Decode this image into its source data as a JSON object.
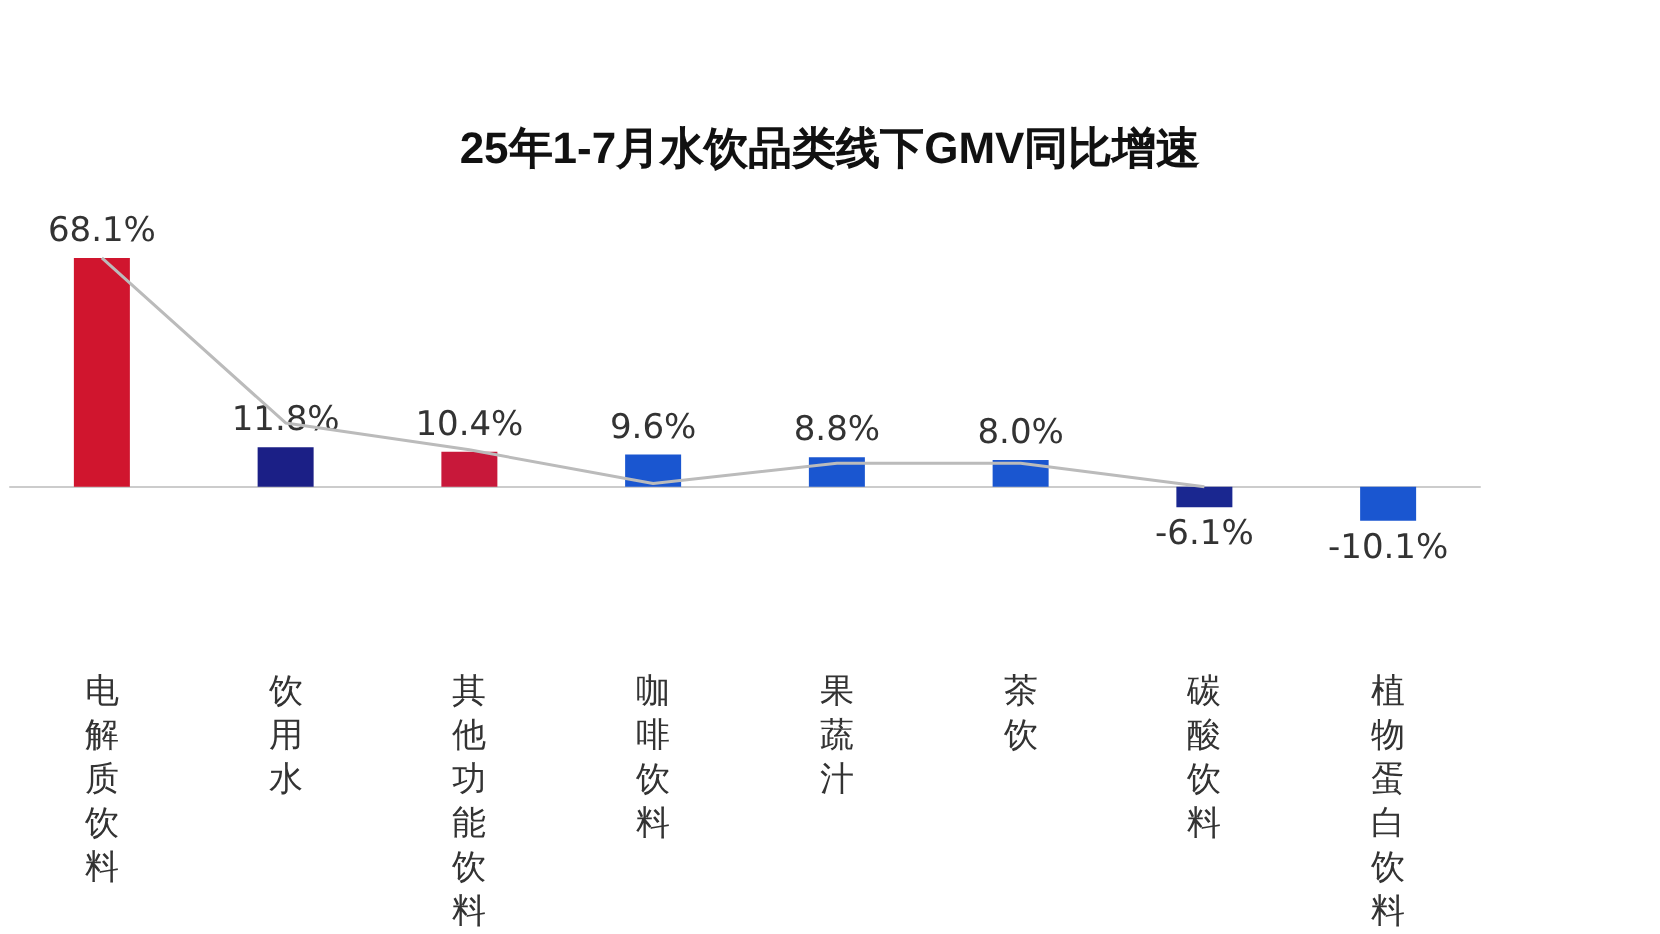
{
  "chart_data": {
    "type": "bar",
    "title": "25年1-7月水饮品类线下GMV同比增速",
    "categories": [
      "电解质饮料",
      "饮用水",
      "其他功能饮料",
      "咖啡饮料",
      "果蔬汁",
      "茶饮",
      "碳酸饮料",
      "植物蛋白饮料"
    ],
    "series": [
      {
        "values": [
          68.1,
          11.8,
          10.4,
          9.6,
          8.8,
          8.0,
          -6.1,
          -10.1
        ],
        "colors": [
          "#d0152e",
          "#1b1f86",
          "#c8183a",
          "#1a56d0",
          "#1a56d0",
          "#1a56d0",
          "#1a2790",
          "#1a56d0"
        ],
        "value_labels": [
          "68.1%",
          "11.8%",
          "10.4%",
          "9.6%",
          "8.8%",
          "8.0%",
          "-6.1%",
          "-10.1%"
        ]
      },
      {
        "type": "line",
        "color": "#bbbbbb",
        "values": [
          68.1,
          19,
          11,
          1,
          7,
          7,
          0,
          null
        ]
      }
    ],
    "grid": false
  }
}
